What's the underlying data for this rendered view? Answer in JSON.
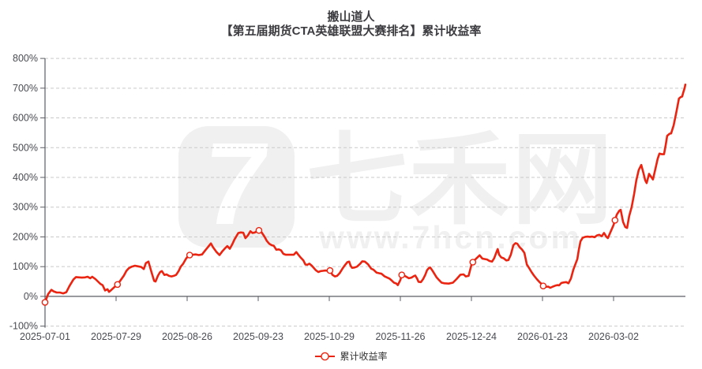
{
  "title": {
    "line1": "搬山道人",
    "line2": "【第五届期货CTA英雄联盟大赛排名】累计收益率"
  },
  "legend": {
    "label": "累计收益率"
  },
  "watermark": {
    "logo_glyph": "7",
    "brand": "七禾网",
    "url": "www.7hcn.com"
  },
  "colors": {
    "line": "#ea2410",
    "marker_fill": "#ffffff",
    "grid": "#c9c9c9",
    "axis": "#5b5d63",
    "label": "#4a4c52",
    "title": "#3c3c40",
    "watermark": "#f0f0f0",
    "background": "#ffffff"
  },
  "chart_data": {
    "type": "line",
    "title": "搬山道人【第五届期货CTA英雄联盟大赛排名】累计收益率",
    "series_name": "累计收益率",
    "x_unit": "trading days since 2025-07-01",
    "xlim": [
      0,
      180.2
    ],
    "xtick_days": [
      0,
      20,
      40,
      60,
      80,
      100,
      120,
      140,
      160
    ],
    "xtick_labels": [
      "2025-07-01",
      "2025-07-29",
      "2025-08-26",
      "2025-09-23",
      "2025-10-29",
      "2025-11-26",
      "2025-12-24",
      "2026-01-23",
      "2026-03-02"
    ],
    "ylim": [
      -100,
      800
    ],
    "ytick_step": 100,
    "ytick_suffix": "%",
    "grid": "dashed",
    "legend_position": "bottom-center",
    "points": [
      [
        0,
        -20
      ],
      [
        0.9,
        8
      ],
      [
        1.8,
        22
      ],
      [
        2.4,
        17
      ],
      [
        3.3,
        13
      ],
      [
        4.2,
        13
      ],
      [
        5.1,
        10
      ],
      [
        6,
        14
      ],
      [
        6.9,
        35
      ],
      [
        8,
        57
      ],
      [
        8.7,
        65
      ],
      [
        9.6,
        64
      ],
      [
        10.4,
        63
      ],
      [
        11.3,
        64
      ],
      [
        12,
        66
      ],
      [
        12.7,
        61
      ],
      [
        13.3,
        66
      ],
      [
        14.2,
        58
      ],
      [
        15.6,
        42
      ],
      [
        16.2,
        38
      ],
      [
        16.9,
        20
      ],
      [
        17.6,
        24
      ],
      [
        18,
        15
      ],
      [
        18.7,
        22
      ],
      [
        19.6,
        32
      ],
      [
        20.4,
        40
      ],
      [
        21.3,
        55
      ],
      [
        22.2,
        70
      ],
      [
        22.9,
        86
      ],
      [
        23.6,
        95
      ],
      [
        24.4,
        100
      ],
      [
        25.3,
        103
      ],
      [
        26.2,
        101
      ],
      [
        27.1,
        99
      ],
      [
        27.8,
        92
      ],
      [
        28.4,
        112
      ],
      [
        29.1,
        117
      ],
      [
        30,
        80
      ],
      [
        30.7,
        52
      ],
      [
        31.1,
        50
      ],
      [
        31.8,
        70
      ],
      [
        32.4,
        82
      ],
      [
        32.9,
        85
      ],
      [
        33.6,
        72
      ],
      [
        34.2,
        74
      ],
      [
        34.9,
        69
      ],
      [
        35.6,
        67
      ],
      [
        36.2,
        69
      ],
      [
        36.9,
        72
      ],
      [
        37.6,
        85
      ],
      [
        38.2,
        100
      ],
      [
        38.9,
        110
      ],
      [
        39.6,
        125
      ],
      [
        40.2,
        135
      ],
      [
        40.7,
        139
      ],
      [
        41.6,
        140
      ],
      [
        42.4,
        141
      ],
      [
        43.3,
        139
      ],
      [
        44.2,
        141
      ],
      [
        45.1,
        155
      ],
      [
        45.8,
        165
      ],
      [
        46.7,
        178
      ],
      [
        47.3,
        165
      ],
      [
        48.2,
        150
      ],
      [
        49.1,
        139
      ],
      [
        49.8,
        150
      ],
      [
        50.7,
        162
      ],
      [
        51.3,
        169
      ],
      [
        52,
        160
      ],
      [
        52.7,
        175
      ],
      [
        53.3,
        191
      ],
      [
        54,
        205
      ],
      [
        54.4,
        213
      ],
      [
        55.1,
        215
      ],
      [
        55.8,
        214
      ],
      [
        56.4,
        196
      ],
      [
        57.1,
        205
      ],
      [
        57.8,
        219
      ],
      [
        58.4,
        213
      ],
      [
        59.1,
        215
      ],
      [
        59.8,
        220
      ],
      [
        60.2,
        222
      ],
      [
        60.9,
        216
      ],
      [
        61.8,
        200
      ],
      [
        62.4,
        187
      ],
      [
        63.1,
        177
      ],
      [
        63.8,
        172
      ],
      [
        64.4,
        170
      ],
      [
        65.1,
        157
      ],
      [
        65.8,
        158
      ],
      [
        66.4,
        155
      ],
      [
        67.1,
        143
      ],
      [
        67.8,
        140
      ],
      [
        68.4,
        140
      ],
      [
        69.1,
        140
      ],
      [
        70,
        140
      ],
      [
        70.7,
        149
      ],
      [
        71.3,
        140
      ],
      [
        72,
        130
      ],
      [
        72.7,
        121
      ],
      [
        73.3,
        107
      ],
      [
        73.8,
        106
      ],
      [
        74.4,
        110
      ],
      [
        75.1,
        103
      ],
      [
        76.2,
        88
      ],
      [
        76.9,
        82
      ],
      [
        77.6,
        85
      ],
      [
        78.2,
        86
      ],
      [
        78.9,
        87
      ],
      [
        79.6,
        86
      ],
      [
        80.2,
        87
      ],
      [
        80.9,
        72
      ],
      [
        81.6,
        67
      ],
      [
        82.2,
        69
      ],
      [
        82.9,
        78
      ],
      [
        83.8,
        95
      ],
      [
        84.4,
        105
      ],
      [
        85.1,
        115
      ],
      [
        85.6,
        117
      ],
      [
        86,
        103
      ],
      [
        86.4,
        96
      ],
      [
        87.1,
        97
      ],
      [
        87.8,
        100
      ],
      [
        88.7,
        110
      ],
      [
        89.3,
        118
      ],
      [
        90,
        117
      ],
      [
        90.9,
        108
      ],
      [
        91.8,
        93
      ],
      [
        92.4,
        90
      ],
      [
        93.3,
        80
      ],
      [
        94,
        78
      ],
      [
        94.7,
        76
      ],
      [
        95.6,
        67
      ],
      [
        96.9,
        60
      ],
      [
        97.6,
        53
      ],
      [
        98.2,
        46
      ],
      [
        98.9,
        43
      ],
      [
        99.3,
        38
      ],
      [
        100,
        55
      ],
      [
        100.4,
        72
      ],
      [
        101.1,
        70
      ],
      [
        102.4,
        61
      ],
      [
        103.1,
        63
      ],
      [
        103.8,
        68
      ],
      [
        104.2,
        70
      ],
      [
        104.7,
        60
      ],
      [
        105.1,
        49
      ],
      [
        105.8,
        48
      ],
      [
        106.4,
        58
      ],
      [
        107,
        72
      ],
      [
        107.5,
        88
      ],
      [
        108,
        95
      ],
      [
        108.4,
        97
      ],
      [
        109.1,
        85
      ],
      [
        110.2,
        64
      ],
      [
        110.9,
        55
      ],
      [
        111.6,
        46
      ],
      [
        112.4,
        44
      ],
      [
        113.6,
        43
      ],
      [
        114.8,
        46
      ],
      [
        115.8,
        58
      ],
      [
        116.9,
        73
      ],
      [
        117.8,
        74
      ],
      [
        118.4,
        67
      ],
      [
        119.2,
        69
      ],
      [
        120,
        106
      ],
      [
        120.4,
        115
      ],
      [
        121.1,
        124
      ],
      [
        122.3,
        138
      ],
      [
        123.1,
        127
      ],
      [
        124.4,
        124
      ],
      [
        125.1,
        119
      ],
      [
        125.8,
        117
      ],
      [
        126.4,
        128
      ],
      [
        127.1,
        150
      ],
      [
        127.4,
        159
      ],
      [
        127.8,
        140
      ],
      [
        128.4,
        131
      ],
      [
        129.1,
        128
      ],
      [
        129.8,
        121
      ],
      [
        130.4,
        122
      ],
      [
        131.1,
        140
      ],
      [
        131.8,
        172
      ],
      [
        132.4,
        179
      ],
      [
        132.9,
        177
      ],
      [
        133.6,
        165
      ],
      [
        134.2,
        158
      ],
      [
        134.9,
        146
      ],
      [
        135.6,
        107
      ],
      [
        136.2,
        96
      ],
      [
        136.9,
        82
      ],
      [
        137.6,
        70
      ],
      [
        138.4,
        58
      ],
      [
        139.1,
        49
      ],
      [
        139.8,
        41
      ],
      [
        140.2,
        35
      ],
      [
        140.9,
        32
      ],
      [
        141.6,
        33
      ],
      [
        142.2,
        29
      ],
      [
        142.9,
        33
      ],
      [
        143.6,
        36
      ],
      [
        144.2,
        38
      ],
      [
        144.7,
        37
      ],
      [
        145.3,
        45
      ],
      [
        146,
        47
      ],
      [
        146.7,
        48
      ],
      [
        147.3,
        44
      ],
      [
        148,
        60
      ],
      [
        148.7,
        90
      ],
      [
        149.3,
        110
      ],
      [
        149.8,
        125
      ],
      [
        150.2,
        155
      ],
      [
        150.7,
        185
      ],
      [
        151.3,
        197
      ],
      [
        152,
        200
      ],
      [
        152.7,
        201
      ],
      [
        153.3,
        200
      ],
      [
        154,
        201
      ],
      [
        154.7,
        199
      ],
      [
        155.3,
        205
      ],
      [
        156,
        207
      ],
      [
        156.7,
        202
      ],
      [
        157.3,
        213
      ],
      [
        158,
        200
      ],
      [
        158.4,
        196
      ],
      [
        159.1,
        215
      ],
      [
        160,
        240
      ],
      [
        160.4,
        256
      ],
      [
        160.9,
        275
      ],
      [
        161.6,
        288
      ],
      [
        162,
        291
      ],
      [
        162.7,
        250
      ],
      [
        163.3,
        233
      ],
      [
        163.8,
        230
      ],
      [
        164.4,
        270
      ],
      [
        165.1,
        300
      ],
      [
        165.8,
        345
      ],
      [
        166.4,
        390
      ],
      [
        167.1,
        425
      ],
      [
        167.8,
        442
      ],
      [
        168.4,
        415
      ],
      [
        168.9,
        390
      ],
      [
        169.3,
        381
      ],
      [
        170,
        412
      ],
      [
        170.7,
        400
      ],
      [
        171.1,
        393
      ],
      [
        171.8,
        430
      ],
      [
        172.4,
        462
      ],
      [
        172.9,
        480
      ],
      [
        173.6,
        478
      ],
      [
        174.2,
        478
      ],
      [
        174.7,
        510
      ],
      [
        175.1,
        540
      ],
      [
        175.8,
        547
      ],
      [
        176.2,
        548
      ],
      [
        176.9,
        575
      ],
      [
        177.6,
        615
      ],
      [
        178,
        640
      ],
      [
        178.4,
        665
      ],
      [
        178.9,
        670
      ],
      [
        179.3,
        672
      ],
      [
        179.6,
        685
      ],
      [
        180,
        700
      ],
      [
        180.2,
        712
      ]
    ],
    "markers": [
      [
        0,
        -20
      ],
      [
        20.4,
        40
      ],
      [
        40.7,
        139
      ],
      [
        60.2,
        222
      ],
      [
        80.2,
        87
      ],
      [
        100.4,
        72
      ],
      [
        120.4,
        115
      ],
      [
        140.2,
        35
      ],
      [
        160.4,
        256
      ]
    ]
  }
}
